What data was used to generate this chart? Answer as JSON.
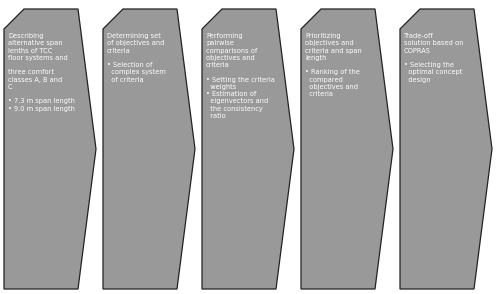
{
  "background_color": "#ffffff",
  "shape_color": "#999999",
  "shape_outline_color": "#222222",
  "text_color": "#ffffff",
  "fig_width": 5.0,
  "fig_height": 2.94,
  "shapes": [
    {
      "title": "Describing\nalternative span\nlenths of TCC\nfloor systems and\n\nthree comfort\nclasses A, B and\nC\n\n• 7.3 m span length\n• 9.0 m span length"
    },
    {
      "title": "Determining set\nof objectives and\ncriteria\n\n• Selection of\n  complex system\n  of criteria"
    },
    {
      "title": "Performing\npairwise\ncomparisons of\nobjectives and\ncriteria\n\n• Setting the criteria\n  weights\n• Estimation of\n  eigenvectors and\n  the consistency\n  ratio"
    },
    {
      "title": "Prioritizing\nobjectives and\ncriteria and span\nlength\n\n• Ranking of the\n  compared\n  objectives and\n  criteria"
    },
    {
      "title": "Trade-off\nsolution based on\nCOPRAS\n\n• Selecting the\n  optimal concept\n  design"
    }
  ]
}
